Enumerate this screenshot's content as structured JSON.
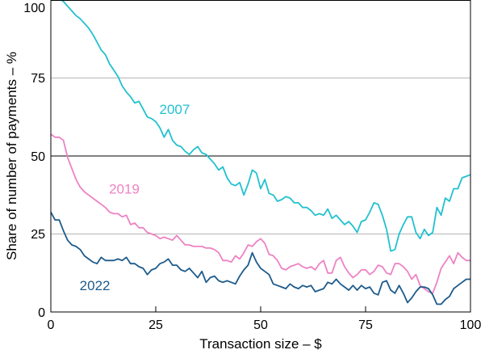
{
  "chart_data": {
    "type": "line",
    "title": "",
    "xlabel": "Transaction size – $",
    "ylabel": "Share of number of payments – %",
    "xlim": [
      0,
      100
    ],
    "ylim": [
      0,
      100
    ],
    "xticks": [
      "0",
      "25",
      "50",
      "75",
      "100"
    ],
    "yticks": [
      "0",
      "25",
      "50",
      "75",
      "100"
    ],
    "gridlines": [
      25,
      50,
      75
    ],
    "series": [
      {
        "name": "2007",
        "color": "#21c1cf",
        "x": [
          0,
          1,
          2,
          3,
          4,
          5,
          6,
          7,
          8,
          9,
          10,
          11,
          12,
          13,
          14,
          15,
          16,
          17,
          18,
          19,
          20,
          21,
          22,
          23,
          24,
          25,
          26,
          27,
          28,
          29,
          30,
          31,
          32,
          33,
          34,
          35,
          36,
          37,
          38,
          39,
          40,
          41,
          42,
          43,
          44,
          45,
          46,
          47,
          48,
          49,
          50,
          51,
          52,
          53,
          54,
          55,
          56,
          57,
          58,
          59,
          60,
          61,
          62,
          63,
          64,
          65,
          66,
          67,
          68,
          69,
          70,
          71,
          72,
          73,
          74,
          75,
          76,
          77,
          78,
          79,
          80,
          81,
          82,
          83,
          84,
          85,
          86,
          87,
          88,
          89,
          90,
          91,
          92,
          93,
          94,
          95,
          96,
          97,
          98,
          99,
          100
        ],
        "y": [
          101.5,
          101.0,
          100.5,
          99.5,
          98.0,
          96.5,
          95.0,
          94.0,
          92.5,
          91.0,
          89.0,
          86.5,
          84.0,
          82.5,
          79.5,
          77.5,
          75.5,
          72.5,
          70.5,
          69.0,
          67.0,
          67.5,
          65.0,
          62.5,
          62.0,
          61.0,
          59.0,
          56.0,
          58.5,
          55.0,
          53.5,
          53.0,
          51.5,
          50.5,
          52.0,
          53.0,
          51.0,
          50.5,
          49.0,
          47.5,
          45.5,
          46.5,
          43.0,
          41.0,
          40.5,
          41.5,
          37.5,
          41.0,
          45.5,
          44.5,
          39.5,
          42.5,
          38.0,
          37.5,
          35.5,
          36.0,
          37.0,
          36.5,
          35.0,
          35.0,
          33.5,
          33.5,
          32.5,
          31.0,
          31.5,
          31.0,
          33.0,
          30.0,
          31.0,
          29.5,
          28.0,
          29.0,
          27.5,
          25.5,
          29.0,
          29.5,
          32.0,
          35.0,
          34.5,
          31.0,
          26.5,
          19.5,
          20.0,
          25.0,
          28.0,
          30.5,
          30.5,
          25.5,
          23.5,
          26.5,
          24.5,
          25.5,
          33.5,
          31.0,
          36.5,
          35.5,
          39.5,
          39.5,
          43.0,
          43.5,
          44.0
        ]
      },
      {
        "name": "2019",
        "color": "#ee82c4",
        "x": [
          0,
          1,
          2,
          3,
          4,
          5,
          6,
          7,
          8,
          9,
          10,
          11,
          12,
          13,
          14,
          15,
          16,
          17,
          18,
          19,
          20,
          21,
          22,
          23,
          24,
          25,
          26,
          27,
          28,
          29,
          30,
          31,
          32,
          33,
          34,
          35,
          36,
          37,
          38,
          39,
          40,
          41,
          42,
          43,
          44,
          45,
          46,
          47,
          48,
          49,
          50,
          51,
          52,
          53,
          54,
          55,
          56,
          57,
          58,
          59,
          60,
          61,
          62,
          63,
          64,
          65,
          66,
          67,
          68,
          69,
          70,
          71,
          72,
          73,
          74,
          75,
          76,
          77,
          78,
          79,
          80,
          81,
          82,
          83,
          84,
          85,
          86,
          87,
          88,
          89,
          90,
          91,
          92,
          93,
          94,
          95,
          96,
          97,
          98,
          99,
          100
        ],
        "y": [
          57.0,
          56.0,
          56.0,
          55.0,
          49.5,
          46.0,
          42.5,
          40.0,
          38.5,
          37.5,
          36.5,
          35.5,
          34.5,
          33.5,
          32.0,
          31.5,
          31.5,
          30.5,
          31.0,
          28.0,
          28.5,
          27.0,
          27.0,
          25.5,
          25.0,
          24.5,
          23.5,
          24.0,
          23.5,
          23.0,
          24.5,
          23.0,
          21.5,
          21.5,
          21.0,
          21.0,
          21.0,
          20.5,
          20.5,
          20.0,
          19.0,
          16.5,
          16.5,
          16.0,
          18.0,
          17.0,
          19.0,
          21.5,
          21.0,
          22.5,
          23.5,
          22.0,
          18.5,
          18.0,
          16.5,
          14.0,
          13.5,
          14.5,
          15.0,
          15.5,
          14.5,
          14.0,
          14.5,
          13.5,
          15.5,
          16.5,
          12.5,
          12.5,
          16.5,
          17.5,
          14.5,
          12.5,
          11.0,
          12.0,
          13.5,
          13.5,
          12.0,
          13.0,
          15.0,
          14.5,
          12.5,
          12.0,
          15.5,
          15.5,
          14.5,
          13.0,
          10.5,
          12.0,
          8.5,
          7.5,
          6.5,
          6.0,
          9.5,
          14.0,
          16.0,
          18.0,
          15.5,
          19.0,
          17.5,
          16.5,
          16.5
        ]
      },
      {
        "name": "2022",
        "color": "#1d5b8b",
        "x": [
          0,
          1,
          2,
          3,
          4,
          5,
          6,
          7,
          8,
          9,
          10,
          11,
          12,
          13,
          14,
          15,
          16,
          17,
          18,
          19,
          20,
          21,
          22,
          23,
          24,
          25,
          26,
          27,
          28,
          29,
          30,
          31,
          32,
          33,
          34,
          35,
          36,
          37,
          38,
          39,
          40,
          41,
          42,
          43,
          44,
          45,
          46,
          47,
          48,
          49,
          50,
          51,
          52,
          53,
          54,
          55,
          56,
          57,
          58,
          59,
          60,
          61,
          62,
          63,
          64,
          65,
          66,
          67,
          68,
          69,
          70,
          71,
          72,
          73,
          74,
          75,
          76,
          77,
          78,
          79,
          80,
          81,
          82,
          83,
          84,
          85,
          86,
          87,
          88,
          89,
          90,
          91,
          92,
          93,
          94,
          95,
          96,
          97,
          98,
          99,
          100
        ],
        "y": [
          32.0,
          29.5,
          29.5,
          26.0,
          23.0,
          21.5,
          21.0,
          20.0,
          18.0,
          17.0,
          16.0,
          15.5,
          17.5,
          16.5,
          16.5,
          16.5,
          17.0,
          16.5,
          17.5,
          15.5,
          15.5,
          14.5,
          14.0,
          12.0,
          13.5,
          14.0,
          15.5,
          16.0,
          17.0,
          15.0,
          15.0,
          13.5,
          13.0,
          14.0,
          12.5,
          11.0,
          13.0,
          9.5,
          11.0,
          11.5,
          10.0,
          9.5,
          10.0,
          9.5,
          9.0,
          11.5,
          13.5,
          15.0,
          19.0,
          16.0,
          14.0,
          13.0,
          12.0,
          9.0,
          8.5,
          8.0,
          7.5,
          9.0,
          8.0,
          7.5,
          8.5,
          8.0,
          8.5,
          6.5,
          7.0,
          7.5,
          9.5,
          9.0,
          10.5,
          9.0,
          8.0,
          7.0,
          8.5,
          7.0,
          8.5,
          7.5,
          8.0,
          6.0,
          5.5,
          9.5,
          10.0,
          7.0,
          6.0,
          8.5,
          6.0,
          3.0,
          4.5,
          6.5,
          8.0,
          8.0,
          7.5,
          5.5,
          2.5,
          2.5,
          4.0,
          5.0,
          7.5,
          8.5,
          9.5,
          10.5,
          10.5
        ]
      }
    ],
    "annotations": [
      {
        "text": "2007",
        "x": 29.5,
        "y": 65.0,
        "color": "#21c1cf"
      },
      {
        "text": "2019",
        "x": 17.5,
        "y": 39.5,
        "color": "#ee82c4"
      },
      {
        "text": "2022",
        "x": 10.5,
        "y": 8.5,
        "color": "#1d5b8b"
      }
    ]
  }
}
